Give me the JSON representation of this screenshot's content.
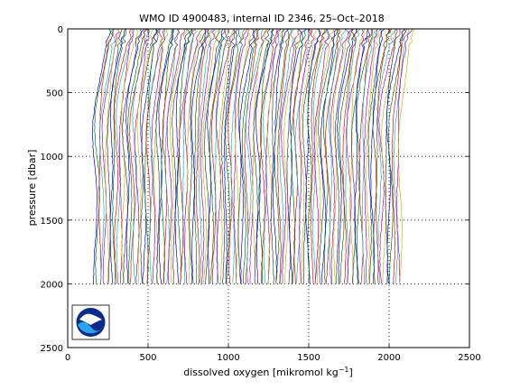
{
  "chart_data": {
    "type": "line",
    "title": "WMO ID 4900483, internal ID 2346, 25–Oct–2018",
    "xlabel": "dissolved oxygen [mikromol kg",
    "xlabel_sup": "−1",
    "xlabel_suffix": "]",
    "ylabel": "pressure [dbar]",
    "xlim": [
      0,
      2500
    ],
    "ylim": [
      2500,
      0
    ],
    "y_reversed": true,
    "xticks": [
      0,
      500,
      1000,
      1500,
      2000,
      2500
    ],
    "yticks": [
      0,
      500,
      1000,
      1500,
      2000,
      2500
    ],
    "grid": "dotted",
    "logo": "noaa-logo",
    "profiles": {
      "count": 132,
      "offset_step": 14.5,
      "pressure_max": 2000,
      "start_oxygen_at_2000dbar": 170,
      "colors": [
        "#0000ff",
        "#008000",
        "#ff0000",
        "#00bfbf",
        "#bf00bf",
        "#bfbf00",
        "#404040"
      ]
    }
  }
}
